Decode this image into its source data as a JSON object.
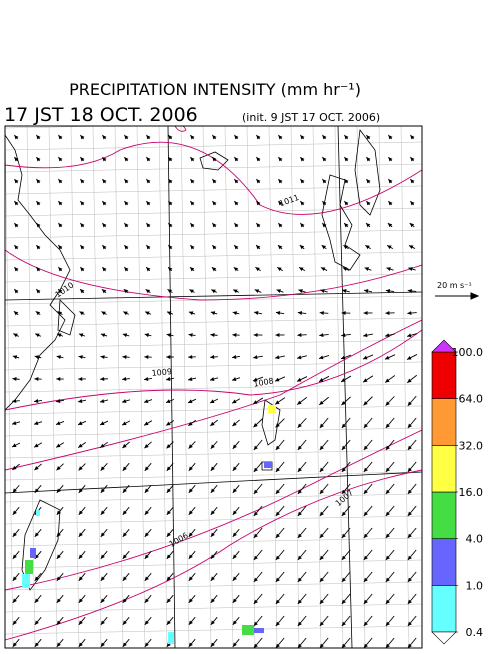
{
  "header": {
    "title": "PRECIPITATION INTENSITY (mm hr⁻¹)",
    "time": "17 JST 18 OCT. 2006",
    "init": "(init. 9 JST 17 OCT. 2006)"
  },
  "map": {
    "isobars": [
      "1011",
      "1010",
      "1009",
      "1008",
      "1007",
      "1006"
    ]
  },
  "vector_legend": {
    "label": "20 m s⁻¹"
  },
  "color_legend": {
    "levels": [
      0.4,
      {
        "value": 1,
        "label": "1.0"
      },
      {
        "value": 4,
        "label": "4.0"
      },
      {
        "value": 16,
        "label": "16.0"
      },
      {
        "value": 32,
        "label": "32.0"
      },
      {
        "value": 64,
        "label": "64.0"
      },
      {
        "value": 100,
        "label": "100.0"
      }
    ],
    "colors": [
      "#66ffff",
      "#6666ff",
      "#44dd44",
      "#ffff44",
      "#ff9933",
      "#ee0000"
    ],
    "over_color": "#cc33ff"
  }
}
